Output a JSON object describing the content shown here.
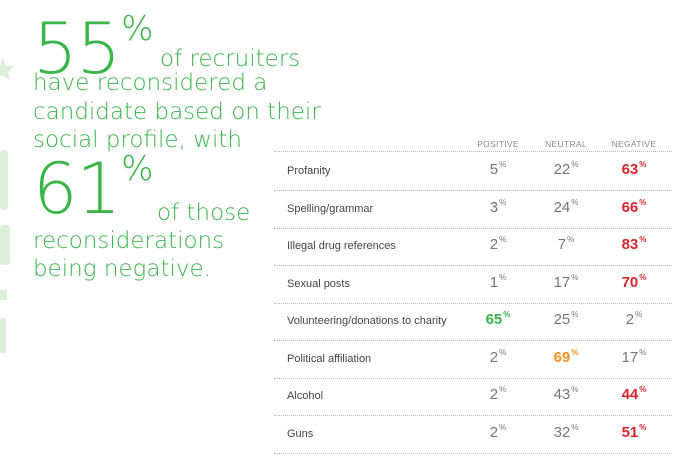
{
  "headline": {
    "stat1_value": "55",
    "stat1_unit": "%",
    "stat1_line1": "of recruiters",
    "stat1_line2": "have reconsidered a",
    "stat1_line3": "candidate based on their",
    "stat1_line4": "social profile, with",
    "stat2_value": "61",
    "stat2_unit": "%",
    "stat2_line1": "of those",
    "stat2_line2": "reconsiderations",
    "stat2_line3": "being negative."
  },
  "colors": {
    "green": "#3ab54a",
    "red": "#d8262f",
    "orange": "#f39220",
    "gray": "#777777"
  },
  "chart_data": {
    "type": "table",
    "columns": [
      "POSITIVE",
      "NEUTRAL",
      "NEGATIVE"
    ],
    "unit": "%",
    "rows": [
      {
        "label": "Profanity",
        "values": [
          5,
          22,
          63
        ],
        "highlight": [
          null,
          null,
          "red"
        ]
      },
      {
        "label": "Spelling/grammar",
        "values": [
          3,
          24,
          66
        ],
        "highlight": [
          null,
          null,
          "red"
        ]
      },
      {
        "label": "Illegal drug references",
        "values": [
          2,
          7,
          83
        ],
        "highlight": [
          null,
          null,
          "red"
        ]
      },
      {
        "label": "Sexual posts",
        "values": [
          1,
          17,
          70
        ],
        "highlight": [
          null,
          null,
          "red"
        ]
      },
      {
        "label": "Volunteering/donations to charity",
        "values": [
          65,
          25,
          2
        ],
        "highlight": [
          "green",
          null,
          null
        ]
      },
      {
        "label": "Political affiliation",
        "values": [
          2,
          69,
          17
        ],
        "highlight": [
          null,
          "orange",
          null
        ]
      },
      {
        "label": "Alcohol",
        "values": [
          2,
          43,
          44
        ],
        "highlight": [
          null,
          null,
          "red"
        ]
      },
      {
        "label": "Guns",
        "values": [
          2,
          32,
          51
        ],
        "highlight": [
          null,
          null,
          "red"
        ]
      }
    ]
  }
}
